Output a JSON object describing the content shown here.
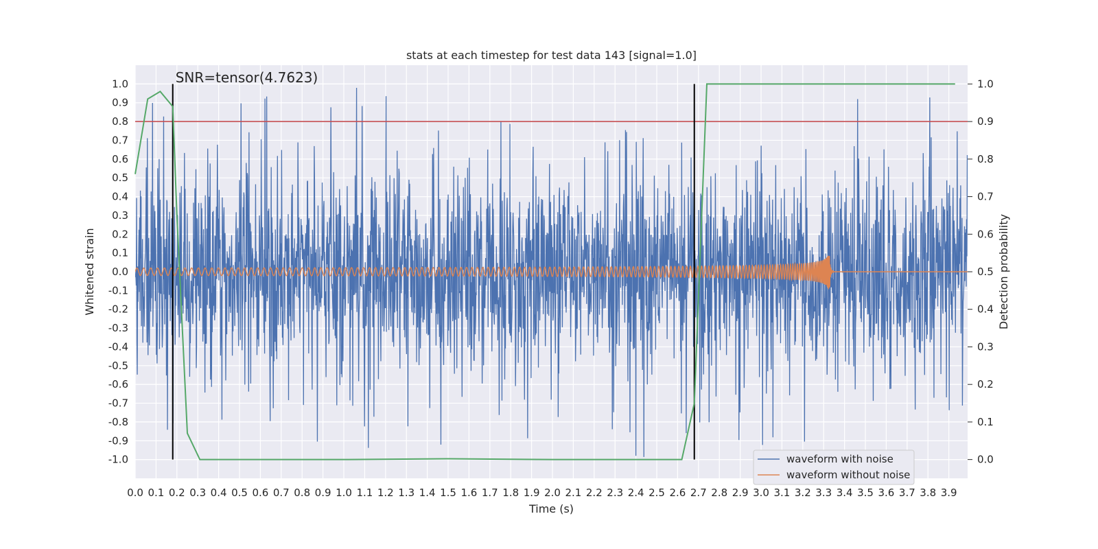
{
  "chart_data": {
    "type": "line",
    "title": "stats at each timestep for test data 143 [signal=1.0]",
    "xlabel": "Time (s)",
    "ylabel": "Whitened strain",
    "y2label": "Detection probability",
    "xlim": [
      0,
      3.99
    ],
    "ylim": [
      -1.1,
      1.1
    ],
    "y2lim": [
      -0.05,
      1.05
    ],
    "xticks": [
      "0.0",
      "0.1",
      "0.2",
      "0.3",
      "0.4",
      "0.5",
      "0.6",
      "0.7",
      "0.8",
      "0.9",
      "1.0",
      "1.1",
      "1.2",
      "1.3",
      "1.4",
      "1.5",
      "1.6",
      "1.7",
      "1.8",
      "1.9",
      "2.0",
      "2.1",
      "2.2",
      "2.3",
      "2.4",
      "2.5",
      "2.6",
      "2.7",
      "2.8",
      "2.9",
      "3.0",
      "3.1",
      "3.2",
      "3.3",
      "3.4",
      "3.5",
      "3.6",
      "3.7",
      "3.8",
      "3.9"
    ],
    "yticks": [
      "1.0",
      "0.9",
      "0.8",
      "0.7",
      "0.6",
      "0.5",
      "0.4",
      "0.3",
      "0.2",
      "0.1",
      "0.0",
      "-0.1",
      "-0.2",
      "-0.3",
      "-0.4",
      "-0.5",
      "-0.6",
      "-0.7",
      "-0.8",
      "-0.9",
      "-1.0"
    ],
    "y2ticks": [
      "1.0",
      "0.9",
      "0.8",
      "0.7",
      "0.6",
      "0.5",
      "0.4",
      "0.3",
      "0.2",
      "0.1",
      "0.0"
    ],
    "annotation": "SNR=tensor(4.7623)",
    "vlines": [
      0.18,
      2.68
    ],
    "threshold": {
      "y": 0.9,
      "color": "#c44e52"
    },
    "legend": {
      "position": "lower-right",
      "entries": [
        {
          "label": "waveform with noise",
          "color": "#4c72b0"
        },
        {
          "label": "waveform without noise",
          "color": "#dd8452"
        }
      ]
    },
    "series": [
      {
        "name": "waveform with noise",
        "color": "#4c72b0",
        "axis": "left",
        "description": "dense noisy strain, amplitude mostly within ±0.6 with spikes to about ±0.95",
        "amplitude_typical": 0.3,
        "spike_max": 0.99
      },
      {
        "name": "waveform without noise",
        "color": "#dd8452",
        "axis": "left",
        "description": "chirp: small oscillation growing in amplitude and frequency, peaking near t=3.33 s then zero",
        "start_amplitude": 0.02,
        "peak_amplitude": 0.18,
        "merger_time": 3.33
      },
      {
        "name": "detection probability",
        "color": "#55a868",
        "axis": "right",
        "x": [
          0.0,
          0.06,
          0.12,
          0.18,
          0.2,
          0.25,
          0.31,
          1.0,
          1.5,
          2.0,
          2.5,
          2.62,
          2.68,
          2.74,
          2.8,
          3.0,
          3.5,
          3.93
        ],
        "y": [
          0.76,
          0.96,
          0.98,
          0.94,
          0.65,
          0.07,
          0.0,
          0.0,
          0.002,
          0.0,
          0.0,
          0.0,
          0.15,
          1.0,
          1.0,
          1.0,
          1.0,
          1.0
        ]
      }
    ]
  }
}
